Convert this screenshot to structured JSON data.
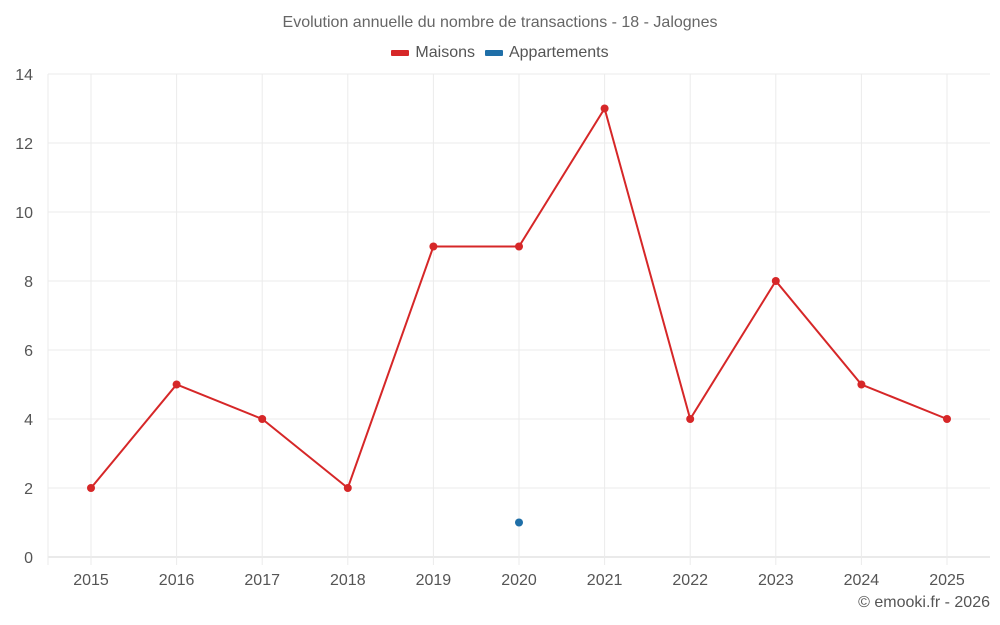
{
  "chart_data": {
    "type": "line",
    "title": "Evolution annuelle du nombre de transactions - 18 - Jalognes",
    "xlabel": "",
    "ylabel": "",
    "categories": [
      "2015",
      "2016",
      "2017",
      "2018",
      "2019",
      "2020",
      "2021",
      "2022",
      "2023",
      "2024",
      "2025"
    ],
    "series": [
      {
        "name": "Maisons",
        "color": "#d62728",
        "values": [
          2,
          5,
          4,
          2,
          9,
          9,
          13,
          4,
          8,
          5,
          4
        ]
      },
      {
        "name": "Appartements",
        "color": "#1f6fa8",
        "values": [
          null,
          null,
          null,
          null,
          null,
          1,
          null,
          null,
          null,
          null,
          null
        ]
      }
    ],
    "ylim": [
      0,
      14
    ],
    "yticks": [
      0,
      2,
      4,
      6,
      8,
      10,
      12,
      14
    ],
    "grid": true,
    "legend_position": "top"
  },
  "header": {
    "title": "Evolution annuelle du nombre de transactions - 18 - Jalognes"
  },
  "legend": {
    "items": [
      {
        "label": "Maisons",
        "color": "#d62728"
      },
      {
        "label": "Appartements",
        "color": "#1f6fa8"
      }
    ]
  },
  "footer": {
    "credit": "© emooki.fr - 2026"
  }
}
